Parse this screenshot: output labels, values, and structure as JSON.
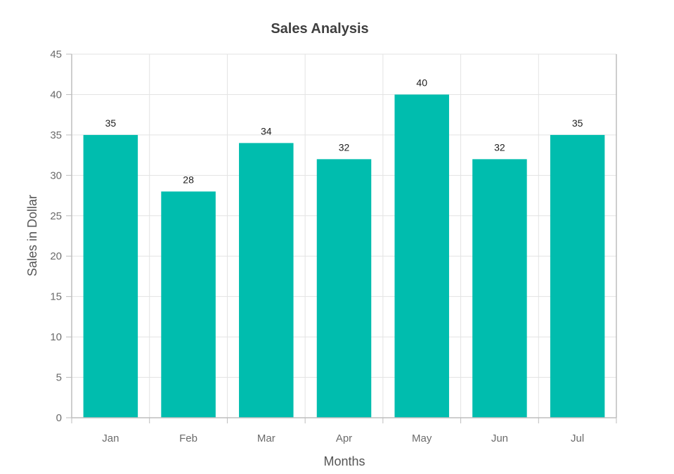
{
  "chart_data": {
    "type": "bar",
    "title": "Sales Analysis",
    "xlabel": "Months",
    "ylabel": "Sales in Dollar",
    "categories": [
      "Jan",
      "Feb",
      "Mar",
      "Apr",
      "May",
      "Jun",
      "Jul"
    ],
    "values": [
      35,
      28,
      34,
      32,
      40,
      32,
      35
    ],
    "ylim": [
      0,
      45
    ],
    "yticks": [
      0,
      5,
      10,
      15,
      20,
      25,
      30,
      35,
      40,
      45
    ],
    "grid": true,
    "colors": {
      "bar": "#00bdae"
    }
  }
}
